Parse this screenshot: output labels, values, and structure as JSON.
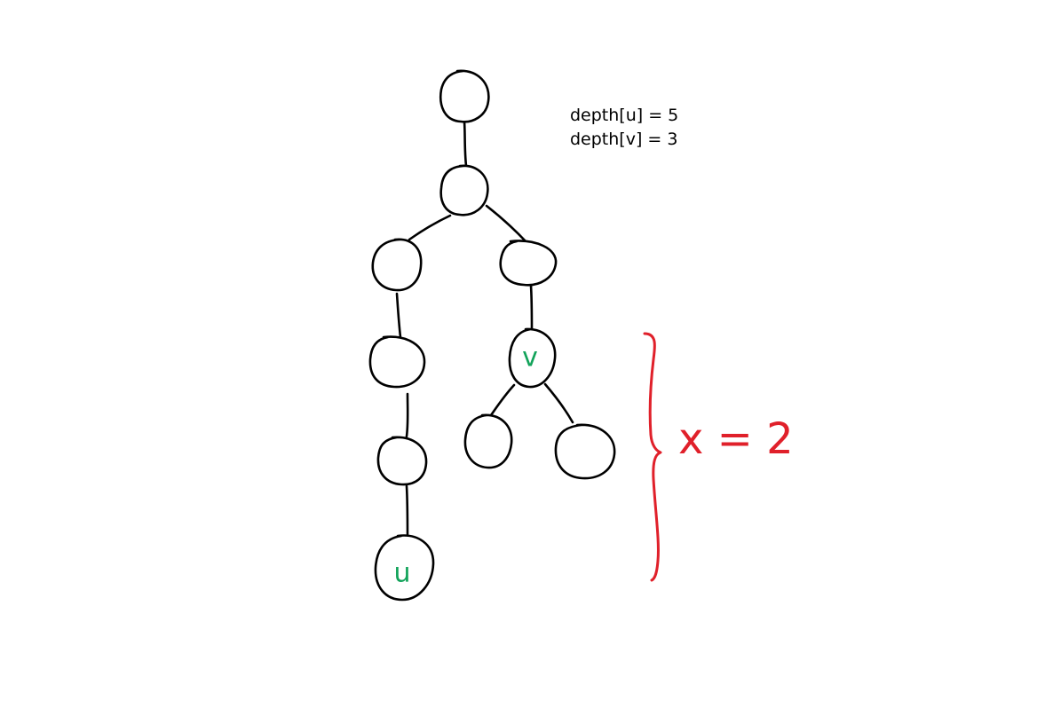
{
  "annotations": {
    "depth_u": "depth[u] = 5",
    "depth_v": "depth[v] = 3",
    "difference": "x = 2"
  },
  "tree": {
    "nodes": [
      {
        "id": "root",
        "label": ""
      },
      {
        "id": "n1",
        "label": ""
      },
      {
        "id": "n2",
        "label": ""
      },
      {
        "id": "n3",
        "label": ""
      },
      {
        "id": "n4",
        "label": ""
      },
      {
        "id": "n5",
        "label": ""
      },
      {
        "id": "u",
        "label": "u"
      },
      {
        "id": "v",
        "label": "v"
      },
      {
        "id": "n6",
        "label": ""
      },
      {
        "id": "n7",
        "label": ""
      }
    ],
    "edges": [
      {
        "from": "root",
        "to": "n1"
      },
      {
        "from": "n1",
        "to": "n2"
      },
      {
        "from": "n1",
        "to": "n5"
      },
      {
        "from": "n2",
        "to": "n3"
      },
      {
        "from": "n3",
        "to": "n4"
      },
      {
        "from": "n4",
        "to": "u"
      },
      {
        "from": "n5",
        "to": "v"
      },
      {
        "from": "v",
        "to": "n6"
      },
      {
        "from": "v",
        "to": "n7"
      }
    ]
  },
  "colors": {
    "ink": "#000000",
    "label": "#12a35a",
    "brace": "#e0202a",
    "background": "#ffffff"
  }
}
